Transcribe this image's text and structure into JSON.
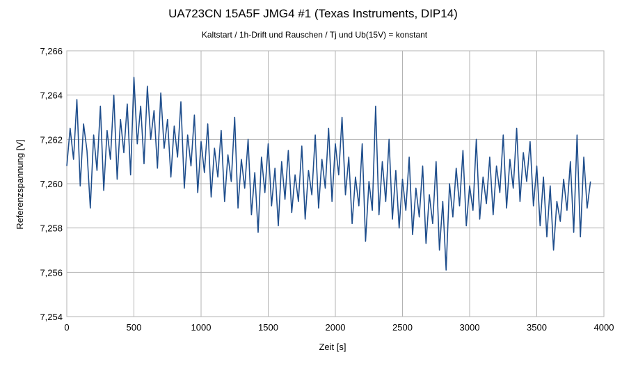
{
  "chart_data": {
    "type": "line",
    "title": "UA723CN 15A5F JMG4 #1 (Texas Instruments, DIP14)",
    "subtitle": "Kaltstart / 1h-Drift und Rauschen / Tj und Ub(15V) = konstant",
    "xlabel": "Zeit [s]",
    "ylabel": "Referenzspannung [V]",
    "xlim": [
      0,
      4000
    ],
    "ylim": [
      7.254,
      7.266
    ],
    "x_ticks": [
      0,
      500,
      1000,
      1500,
      2000,
      2500,
      3000,
      3500,
      4000
    ],
    "x_tick_labels": [
      "0",
      "500",
      "1000",
      "1500",
      "2000",
      "2500",
      "3000",
      "3500",
      "4000"
    ],
    "y_ticks": [
      7.254,
      7.256,
      7.258,
      7.26,
      7.262,
      7.264,
      7.266
    ],
    "y_tick_labels": [
      "7,254",
      "7,256",
      "7,258",
      "7,260",
      "7,262",
      "7,264",
      "7,266"
    ],
    "grid": true,
    "series": [
      {
        "color": "#1f4e8c",
        "x": [
          0,
          25,
          50,
          75,
          100,
          125,
          150,
          175,
          200,
          225,
          250,
          275,
          300,
          325,
          350,
          375,
          400,
          425,
          450,
          475,
          500,
          525,
          550,
          575,
          600,
          625,
          650,
          675,
          700,
          725,
          750,
          775,
          800,
          825,
          850,
          875,
          900,
          925,
          950,
          975,
          1000,
          1025,
          1050,
          1075,
          1100,
          1125,
          1150,
          1175,
          1200,
          1225,
          1250,
          1275,
          1300,
          1325,
          1350,
          1375,
          1400,
          1425,
          1450,
          1475,
          1500,
          1525,
          1550,
          1575,
          1600,
          1625,
          1650,
          1675,
          1700,
          1725,
          1750,
          1775,
          1800,
          1825,
          1850,
          1875,
          1900,
          1925,
          1950,
          1975,
          2000,
          2025,
          2050,
          2075,
          2100,
          2125,
          2150,
          2175,
          2200,
          2225,
          2250,
          2275,
          2300,
          2325,
          2350,
          2375,
          2400,
          2425,
          2450,
          2475,
          2500,
          2525,
          2550,
          2575,
          2600,
          2625,
          2650,
          2675,
          2700,
          2725,
          2750,
          2775,
          2800,
          2825,
          2850,
          2875,
          2900,
          2925,
          2950,
          2975,
          3000,
          3025,
          3050,
          3075,
          3100,
          3125,
          3150,
          3175,
          3200,
          3225,
          3250,
          3275,
          3300,
          3325,
          3350,
          3375,
          3400,
          3425,
          3450,
          3475,
          3500,
          3525,
          3550,
          3575,
          3600,
          3625,
          3650,
          3675,
          3700,
          3725,
          3750,
          3775,
          3800,
          3825,
          3850,
          3875,
          3900
        ],
        "y": [
          7.2608,
          7.2625,
          7.2611,
          7.2638,
          7.2599,
          7.2627,
          7.2615,
          7.2589,
          7.2622,
          7.2606,
          7.2635,
          7.2597,
          7.2624,
          7.2611,
          7.264,
          7.2602,
          7.2629,
          7.2614,
          7.2636,
          7.2604,
          7.2648,
          7.2618,
          7.2635,
          7.2609,
          7.2644,
          7.262,
          7.2633,
          7.2607,
          7.2641,
          7.2616,
          7.2629,
          7.2603,
          7.2626,
          7.2612,
          7.2637,
          7.2598,
          7.2622,
          7.2608,
          7.2631,
          7.2596,
          7.2619,
          7.2605,
          7.2627,
          7.2594,
          7.2616,
          7.2603,
          7.2624,
          7.2592,
          7.2613,
          7.2601,
          7.263,
          7.2589,
          7.2611,
          7.2598,
          7.262,
          7.2586,
          7.2605,
          7.2578,
          7.2612,
          7.2596,
          7.2618,
          7.259,
          7.2607,
          7.2581,
          7.261,
          7.2593,
          7.2615,
          7.2587,
          7.2604,
          7.2592,
          7.2617,
          7.2584,
          7.2606,
          7.2595,
          7.2622,
          7.2589,
          7.2611,
          7.2598,
          7.2625,
          7.2592,
          7.2618,
          7.2604,
          7.263,
          7.2595,
          7.2612,
          7.2582,
          7.2603,
          7.259,
          7.2618,
          7.2574,
          7.2601,
          7.2588,
          7.2635,
          7.2586,
          7.261,
          7.2592,
          7.262,
          7.2584,
          7.2606,
          7.258,
          7.2602,
          7.2588,
          7.2612,
          7.2577,
          7.2598,
          7.2585,
          7.2608,
          7.2573,
          7.2595,
          7.2582,
          7.261,
          7.257,
          7.2592,
          7.2561,
          7.26,
          7.2585,
          7.2607,
          7.259,
          7.2615,
          7.2581,
          7.2599,
          7.2588,
          7.262,
          7.2584,
          7.2603,
          7.2591,
          7.2612,
          7.2586,
          7.2608,
          7.2596,
          7.2622,
          7.2589,
          7.2611,
          7.2598,
          7.2625,
          7.2592,
          7.2614,
          7.2601,
          7.2619,
          7.259,
          7.2608,
          7.2581,
          7.2603,
          7.2576,
          7.2599,
          7.257,
          7.2592,
          7.2583,
          7.2602,
          7.2588,
          7.261,
          7.2578,
          7.2622,
          7.2576,
          7.2612,
          7.2589,
          7.2601
        ]
      }
    ]
  }
}
